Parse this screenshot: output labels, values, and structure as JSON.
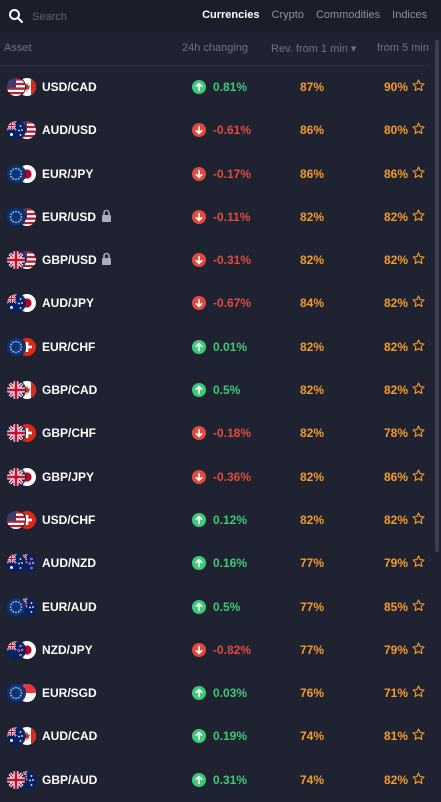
{
  "search": {
    "placeholder": "Search"
  },
  "tabs": [
    {
      "label": "Currencies",
      "active": true
    },
    {
      "label": "Crypto",
      "active": false
    },
    {
      "label": "Commodities",
      "active": false
    },
    {
      "label": "Indices",
      "active": false
    }
  ],
  "columns": {
    "asset": "Asset",
    "change": "24h changing",
    "rev1": "Rev. from 1 min ▾",
    "rev5": "from 5 min"
  },
  "colors": {
    "up": "#3ec97a",
    "down": "#e04b40",
    "accent": "#f39a2d"
  },
  "rows": [
    {
      "pair": "USD/CAD",
      "flags": [
        "us",
        "ca"
      ],
      "locked": false,
      "change": "0.81%",
      "direction": "up",
      "rev1": "87%",
      "rev5": "90%"
    },
    {
      "pair": "AUD/USD",
      "flags": [
        "au",
        "us"
      ],
      "locked": false,
      "change": "-0.61%",
      "direction": "down",
      "rev1": "86%",
      "rev5": "80%"
    },
    {
      "pair": "EUR/JPY",
      "flags": [
        "eu",
        "jp"
      ],
      "locked": false,
      "change": "-0.17%",
      "direction": "down",
      "rev1": "86%",
      "rev5": "86%"
    },
    {
      "pair": "EUR/USD",
      "flags": [
        "eu",
        "us"
      ],
      "locked": true,
      "change": "-0.11%",
      "direction": "down",
      "rev1": "82%",
      "rev5": "82%"
    },
    {
      "pair": "GBP/USD",
      "flags": [
        "gb",
        "us"
      ],
      "locked": true,
      "change": "-0.31%",
      "direction": "down",
      "rev1": "82%",
      "rev5": "82%"
    },
    {
      "pair": "AUD/JPY",
      "flags": [
        "au",
        "jp"
      ],
      "locked": false,
      "change": "-0.67%",
      "direction": "down",
      "rev1": "84%",
      "rev5": "82%"
    },
    {
      "pair": "EUR/CHF",
      "flags": [
        "eu",
        "ch"
      ],
      "locked": false,
      "change": "0.01%",
      "direction": "up",
      "rev1": "82%",
      "rev5": "82%"
    },
    {
      "pair": "GBP/CAD",
      "flags": [
        "gb",
        "ca"
      ],
      "locked": false,
      "change": "0.5%",
      "direction": "up",
      "rev1": "82%",
      "rev5": "82%"
    },
    {
      "pair": "GBP/CHF",
      "flags": [
        "gb",
        "ch"
      ],
      "locked": false,
      "change": "-0.18%",
      "direction": "down",
      "rev1": "82%",
      "rev5": "78%"
    },
    {
      "pair": "GBP/JPY",
      "flags": [
        "gb",
        "jp"
      ],
      "locked": false,
      "change": "-0.36%",
      "direction": "down",
      "rev1": "82%",
      "rev5": "86%"
    },
    {
      "pair": "USD/CHF",
      "flags": [
        "us",
        "ch"
      ],
      "locked": false,
      "change": "0.12%",
      "direction": "up",
      "rev1": "82%",
      "rev5": "82%"
    },
    {
      "pair": "AUD/NZD",
      "flags": [
        "au",
        "nz"
      ],
      "locked": false,
      "change": "0.16%",
      "direction": "up",
      "rev1": "77%",
      "rev5": "79%"
    },
    {
      "pair": "EUR/AUD",
      "flags": [
        "eu",
        "au"
      ],
      "locked": false,
      "change": "0.5%",
      "direction": "up",
      "rev1": "77%",
      "rev5": "85%"
    },
    {
      "pair": "NZD/JPY",
      "flags": [
        "nz",
        "jp"
      ],
      "locked": false,
      "change": "-0.82%",
      "direction": "down",
      "rev1": "77%",
      "rev5": "79%"
    },
    {
      "pair": "EUR/SGD",
      "flags": [
        "eu",
        "sg"
      ],
      "locked": false,
      "change": "0.03%",
      "direction": "up",
      "rev1": "76%",
      "rev5": "71%"
    },
    {
      "pair": "AUD/CAD",
      "flags": [
        "au",
        "ca"
      ],
      "locked": false,
      "change": "0.19%",
      "direction": "up",
      "rev1": "74%",
      "rev5": "81%"
    },
    {
      "pair": "GBP/AUD",
      "flags": [
        "gb",
        "au"
      ],
      "locked": false,
      "change": "0.31%",
      "direction": "up",
      "rev1": "74%",
      "rev5": "82%"
    }
  ]
}
